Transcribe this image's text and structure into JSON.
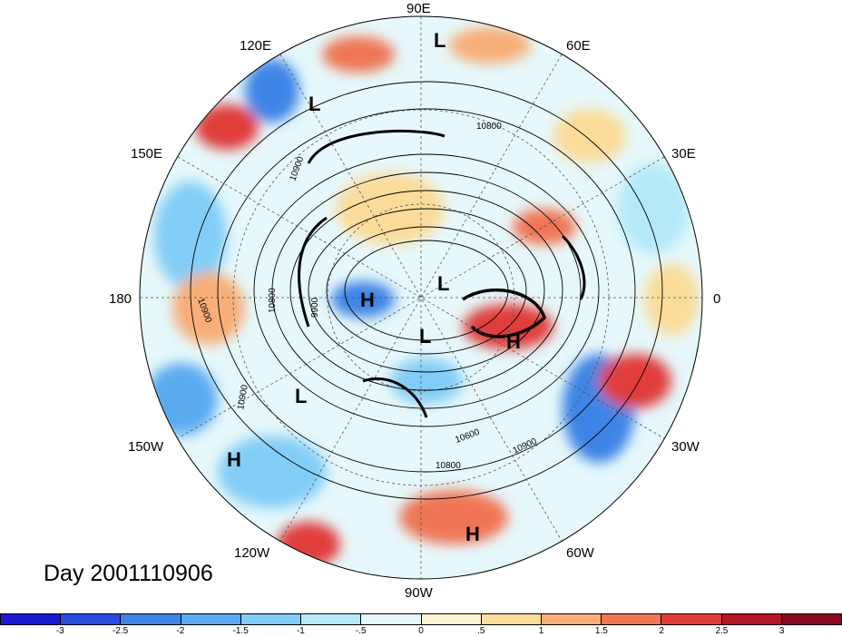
{
  "title": "Day 2001110906",
  "longitude_labels": [
    "90E",
    "60E",
    "30E",
    "0",
    "30W",
    "60W",
    "90W",
    "120W",
    "150W",
    "180",
    "150E",
    "120E"
  ],
  "contour_labels": [
    "10800",
    "10900",
    "10600",
    "10900",
    "10800",
    "10800",
    "10900",
    "10900",
    "9900"
  ],
  "pressure_centers": [
    "L",
    "L",
    "H",
    "L",
    "L",
    "H",
    "L",
    "H",
    "H"
  ],
  "colorbar": {
    "ticks": [
      "-3",
      "-2.5",
      "-2",
      "-1.5",
      "-1",
      "-.5",
      "0",
      ".5",
      "1",
      "1.5",
      "2",
      "2.5",
      "3"
    ],
    "colors": [
      "#1a1ad4",
      "#2a4ce0",
      "#3e84e6",
      "#5aaaf0",
      "#82cdf6",
      "#b4eaf8",
      "#e6f8fb",
      "#fdf6d2",
      "#fbdc9a",
      "#f7ae78",
      "#ef7654",
      "#e03c3a",
      "#b71426",
      "#8c0a1e"
    ]
  }
}
